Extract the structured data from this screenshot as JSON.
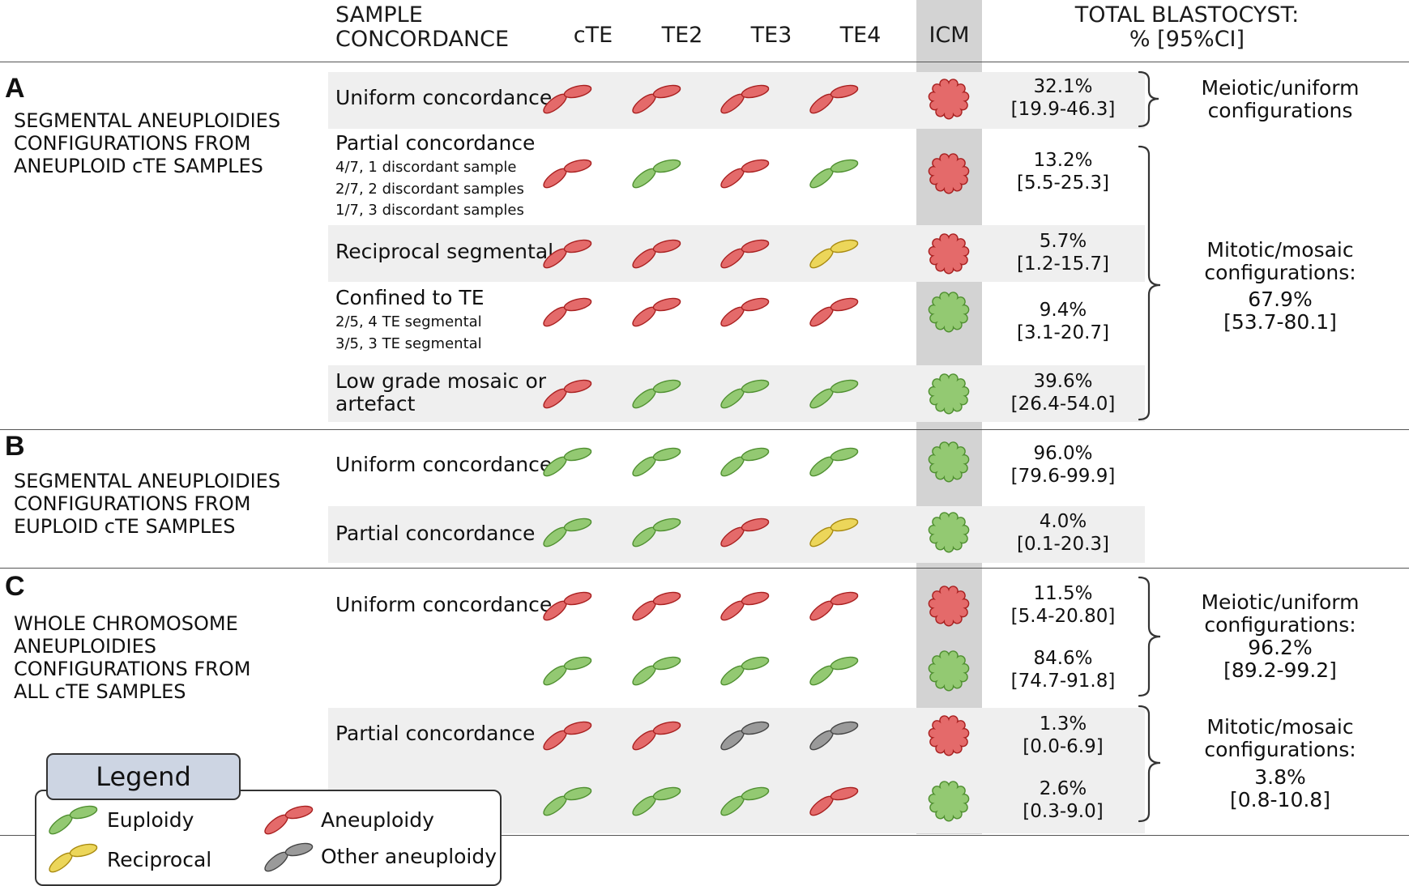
{
  "header": {
    "sample_concordance_l1": "SAMPLE",
    "sample_concordance_l2": "CONCORDANCE",
    "col_cte": "cTE",
    "col_te2": "TE2",
    "col_te3": "TE3",
    "col_te4": "TE4",
    "col_icm": "ICM",
    "total_l1": "TOTAL BLASTOCYST:",
    "total_l2": "% [95%CI]"
  },
  "colors": {
    "euploidy": "#93c972",
    "aneuploidy": "#e46a6a",
    "reciprocal": "#ecd65a",
    "other": "#9a9a9a",
    "outline_euploidy": "#4f8f30",
    "outline_aneuploidy": "#a82020",
    "outline_reciprocal": "#a88a10",
    "outline_other": "#444444"
  },
  "sections": {
    "a": {
      "letter": "A",
      "title_l1": "SEGMENTAL ANEUPLOIDIES",
      "title_l2": "CONFIGURATIONS FROM",
      "title_l3": "ANEUPLOID cTE SAMPLES",
      "rows": [
        {
          "label": "Uniform concordance",
          "pct": "32.1%",
          "ci": "[19.9-46.3]"
        },
        {
          "label": "Partial concordance",
          "sub1": "4/7, 1 discordant sample",
          "sub2": "2/7, 2 discordant samples",
          "sub3": "1/7, 3 discordant samples",
          "pct": "13.2%",
          "ci": "[5.5-25.3]"
        },
        {
          "label": "Reciprocal segmental",
          "pct": "5.7%",
          "ci": "[1.2-15.7]"
        },
        {
          "label": "Confined to TE",
          "sub1": "2/5, 4 TE segmental",
          "sub2": "3/5, 3 TE segmental",
          "pct": "9.4%",
          "ci": "[3.1-20.7]"
        },
        {
          "label_l1": "Low grade mosaic or",
          "label_l2": "artefact",
          "pct": "39.6%",
          "ci": "[26.4-54.0]"
        }
      ],
      "meiotic_l1": "Meiotic/uniform",
      "meiotic_l2": "configurations",
      "mitotic_l1": "Mitotic/mosaic",
      "mitotic_l2": "configurations:",
      "mitotic_pct": "67.9%",
      "mitotic_ci": "[53.7-80.1]"
    },
    "b": {
      "letter": "B",
      "title_l1": "SEGMENTAL ANEUPLOIDIES",
      "title_l2": "CONFIGURATIONS FROM",
      "title_l3": "EUPLOID cTE SAMPLES",
      "rows": [
        {
          "label": "Uniform concordance",
          "pct": "96.0%",
          "ci": "[79.6-99.9]"
        },
        {
          "label": "Partial concordance",
          "pct": "4.0%",
          "ci": "[0.1-20.3]"
        }
      ]
    },
    "c": {
      "letter": "C",
      "title_l1": "WHOLE CHROMOSOME",
      "title_l2": "ANEUPLOIDIES",
      "title_l3": "CONFIGURATIONS FROM",
      "title_l4": "ALL cTE SAMPLES",
      "rows": [
        {
          "label": "Uniform concordance",
          "pct": "11.5%",
          "ci": "[5.4-20.80]"
        },
        {
          "label": "",
          "pct": "84.6%",
          "ci": "[74.7-91.8]"
        },
        {
          "label": "Partial concordance",
          "pct": "1.3%",
          "ci": "[0.0-6.9]"
        },
        {
          "label": "",
          "pct": "2.6%",
          "ci": "[0.3-9.0]"
        }
      ],
      "meiotic_l1": "Meiotic/uniform",
      "meiotic_l2": "configurations:",
      "meiotic_pct": "96.2%",
      "meiotic_ci": "[89.2-99.2]",
      "mitotic_l1": "Mitotic/mosaic",
      "mitotic_l2": "configurations:",
      "mitotic_pct": "3.8%",
      "mitotic_ci": "[0.8-10.8]"
    }
  },
  "legend": {
    "title": "Legend",
    "euploidy": "Euploidy",
    "aneuploidy": "Aneuploidy",
    "reciprocal": "Reciprocal",
    "other": "Other aneuploidy"
  },
  "grid": [
    {
      "cells": [
        "aneuploidy",
        "aneuploidy",
        "aneuploidy",
        "aneuploidy"
      ],
      "icm": "aneuploidy"
    },
    {
      "cells": [
        "aneuploidy",
        "euploidy",
        "aneuploidy",
        "euploidy"
      ],
      "icm": "aneuploidy"
    },
    {
      "cells": [
        "aneuploidy",
        "aneuploidy",
        "aneuploidy",
        "reciprocal"
      ],
      "icm": "aneuploidy"
    },
    {
      "cells": [
        "aneuploidy",
        "aneuploidy",
        "aneuploidy",
        "aneuploidy"
      ],
      "icm": "euploidy"
    },
    {
      "cells": [
        "aneuploidy",
        "euploidy",
        "euploidy",
        "euploidy"
      ],
      "icm": "euploidy"
    },
    {
      "cells": [
        "euploidy",
        "euploidy",
        "euploidy",
        "euploidy"
      ],
      "icm": "euploidy"
    },
    {
      "cells": [
        "euploidy",
        "euploidy",
        "aneuploidy",
        "reciprocal"
      ],
      "icm": "euploidy"
    },
    {
      "cells": [
        "aneuploidy",
        "aneuploidy",
        "aneuploidy",
        "aneuploidy"
      ],
      "icm": "aneuploidy"
    },
    {
      "cells": [
        "euploidy",
        "euploidy",
        "euploidy",
        "euploidy"
      ],
      "icm": "euploidy"
    },
    {
      "cells": [
        "aneuploidy",
        "aneuploidy",
        "other",
        "other"
      ],
      "icm": "aneuploidy"
    },
    {
      "cells": [
        "euploidy",
        "euploidy",
        "euploidy",
        "aneuploidy"
      ],
      "icm": "euploidy"
    }
  ]
}
